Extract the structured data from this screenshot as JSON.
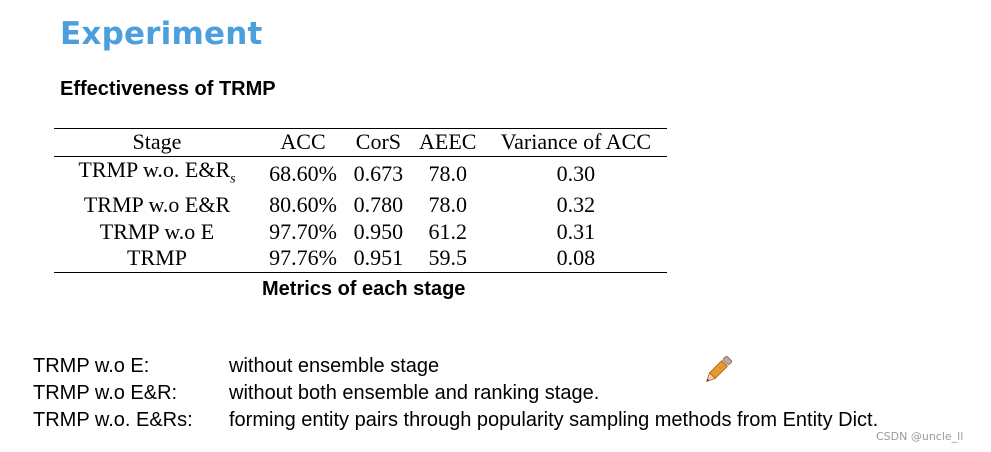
{
  "header": {
    "title": "Experiment",
    "subtitle": "Effectiveness of TRMP"
  },
  "table": {
    "columns": [
      "Stage",
      "ACC",
      "CorS",
      "AEEC",
      "Variance of ACC"
    ],
    "rows": [
      {
        "stage": "TRMP w.o. E&R",
        "stage_sub": "s",
        "acc": "68.60%",
        "cors": "0.673",
        "aeec": "78.0",
        "variance": "0.30"
      },
      {
        "stage": "TRMP w.o E&R",
        "acc": "80.60%",
        "cors": "0.780",
        "aeec": "78.0",
        "variance": "0.32"
      },
      {
        "stage": "TRMP w.o E",
        "acc": "97.70%",
        "cors": "0.950",
        "aeec": "61.2",
        "variance": "0.31"
      },
      {
        "stage": "TRMP",
        "acc": "97.76%",
        "cors": "0.951",
        "aeec": "59.5",
        "variance": "0.08"
      }
    ],
    "caption": "Metrics of each stage"
  },
  "notes": [
    {
      "term": "TRMP w.o E:",
      "desc": "without ensemble stage"
    },
    {
      "term": "TRMP w.o E&R:",
      "desc": "without both ensemble and ranking stage."
    },
    {
      "term": "TRMP w.o. E&Rs:",
      "desc": "forming entity pairs through popularity sampling methods from Entity Dict."
    }
  ],
  "decor": {
    "pencil_icon": "pencil-icon"
  },
  "watermark": "CSDN @uncle_ll"
}
